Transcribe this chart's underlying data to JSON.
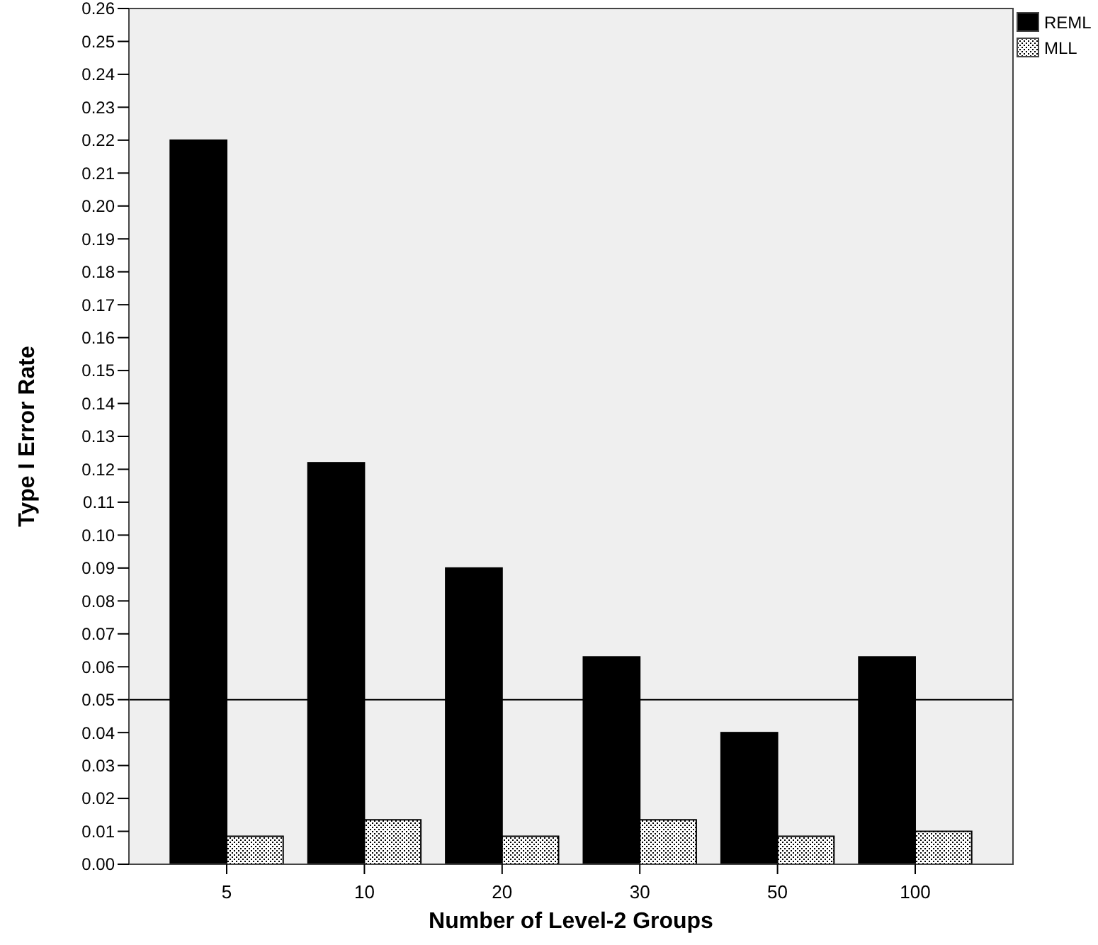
{
  "chart_data": {
    "type": "bar",
    "xlabel": "Number of Level-2 Groups",
    "ylabel": "Type I Error Rate",
    "categories": [
      "5",
      "10",
      "20",
      "30",
      "50",
      "100"
    ],
    "series": [
      {
        "name": "REML",
        "color": "#000000",
        "values": [
          0.22,
          0.122,
          0.09,
          0.063,
          0.04,
          0.063
        ]
      },
      {
        "name": "MLL",
        "color": "#000000",
        "values": [
          0.0085,
          0.0135,
          0.0085,
          0.0135,
          0.0085,
          0.01
        ]
      }
    ],
    "ylim": [
      0,
      0.26
    ],
    "yticks": [
      {
        "value": 0,
        "label": "0.00"
      },
      {
        "value": 0.01,
        "label": "0.01"
      },
      {
        "value": 0.02,
        "label": "0.02"
      },
      {
        "value": 0.03,
        "label": "0.03"
      },
      {
        "value": 0.04,
        "label": "0.04"
      },
      {
        "value": 0.05,
        "label": "0.05"
      },
      {
        "value": 0.06,
        "label": "0.06"
      },
      {
        "value": 0.07,
        "label": "0.07"
      },
      {
        "value": 0.08,
        "label": "0.08"
      },
      {
        "value": 0.09,
        "label": "0.09"
      },
      {
        "value": 0.1,
        "label": "0.10"
      },
      {
        "value": 0.11,
        "label": "0.11"
      },
      {
        "value": 0.12,
        "label": "0.12"
      },
      {
        "value": 0.13,
        "label": "0.13"
      },
      {
        "value": 0.14,
        "label": "0.14"
      },
      {
        "value": 0.15,
        "label": "0.15"
      },
      {
        "value": 0.16,
        "label": "0.16"
      },
      {
        "value": 0.17,
        "label": "0.17"
      },
      {
        "value": 0.18,
        "label": "0.18"
      },
      {
        "value": 0.19,
        "label": "0.19"
      },
      {
        "value": 0.2,
        "label": "0.20"
      },
      {
        "value": 0.21,
        "label": "0.21"
      },
      {
        "value": 0.22,
        "label": "0.22"
      },
      {
        "value": 0.23,
        "label": "0.23"
      },
      {
        "value": 0.24,
        "label": "0.24"
      },
      {
        "value": 0.25,
        "label": "0.25"
      },
      {
        "value": 0.26,
        "label": "0.26"
      }
    ],
    "ref_lines": [
      {
        "axis": "y",
        "value": 0.05,
        "color": "#000000"
      }
    ],
    "legend": "top right",
    "grid": false
  }
}
